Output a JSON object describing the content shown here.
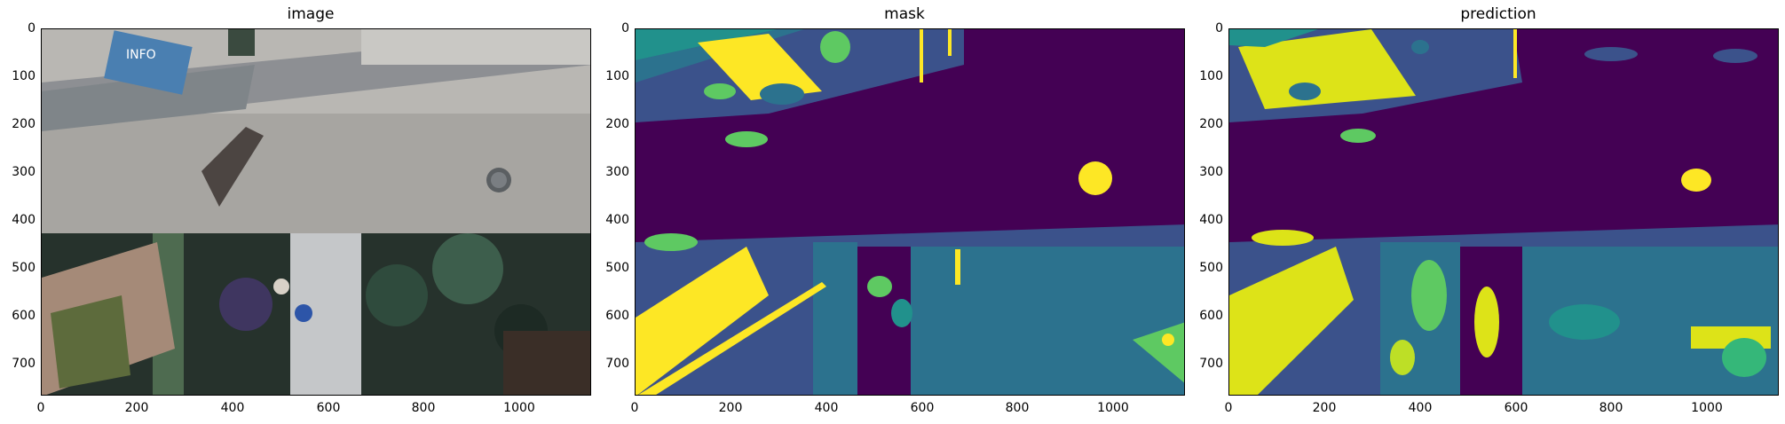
{
  "panels": [
    {
      "title": "image"
    },
    {
      "title": "mask"
    },
    {
      "title": "prediction"
    }
  ],
  "axes": {
    "x_ticks": [
      "0",
      "200",
      "400",
      "600",
      "800",
      "1000"
    ],
    "y_ticks": [
      "0",
      "100",
      "200",
      "300",
      "400",
      "500",
      "600",
      "700"
    ]
  },
  "colors": {
    "c0": "#440154",
    "c1": "#3b528b",
    "c2": "#2c728e",
    "c3": "#21918c",
    "c4": "#5ec962",
    "c5": "#fde725"
  },
  "sign_text": "INFO"
}
